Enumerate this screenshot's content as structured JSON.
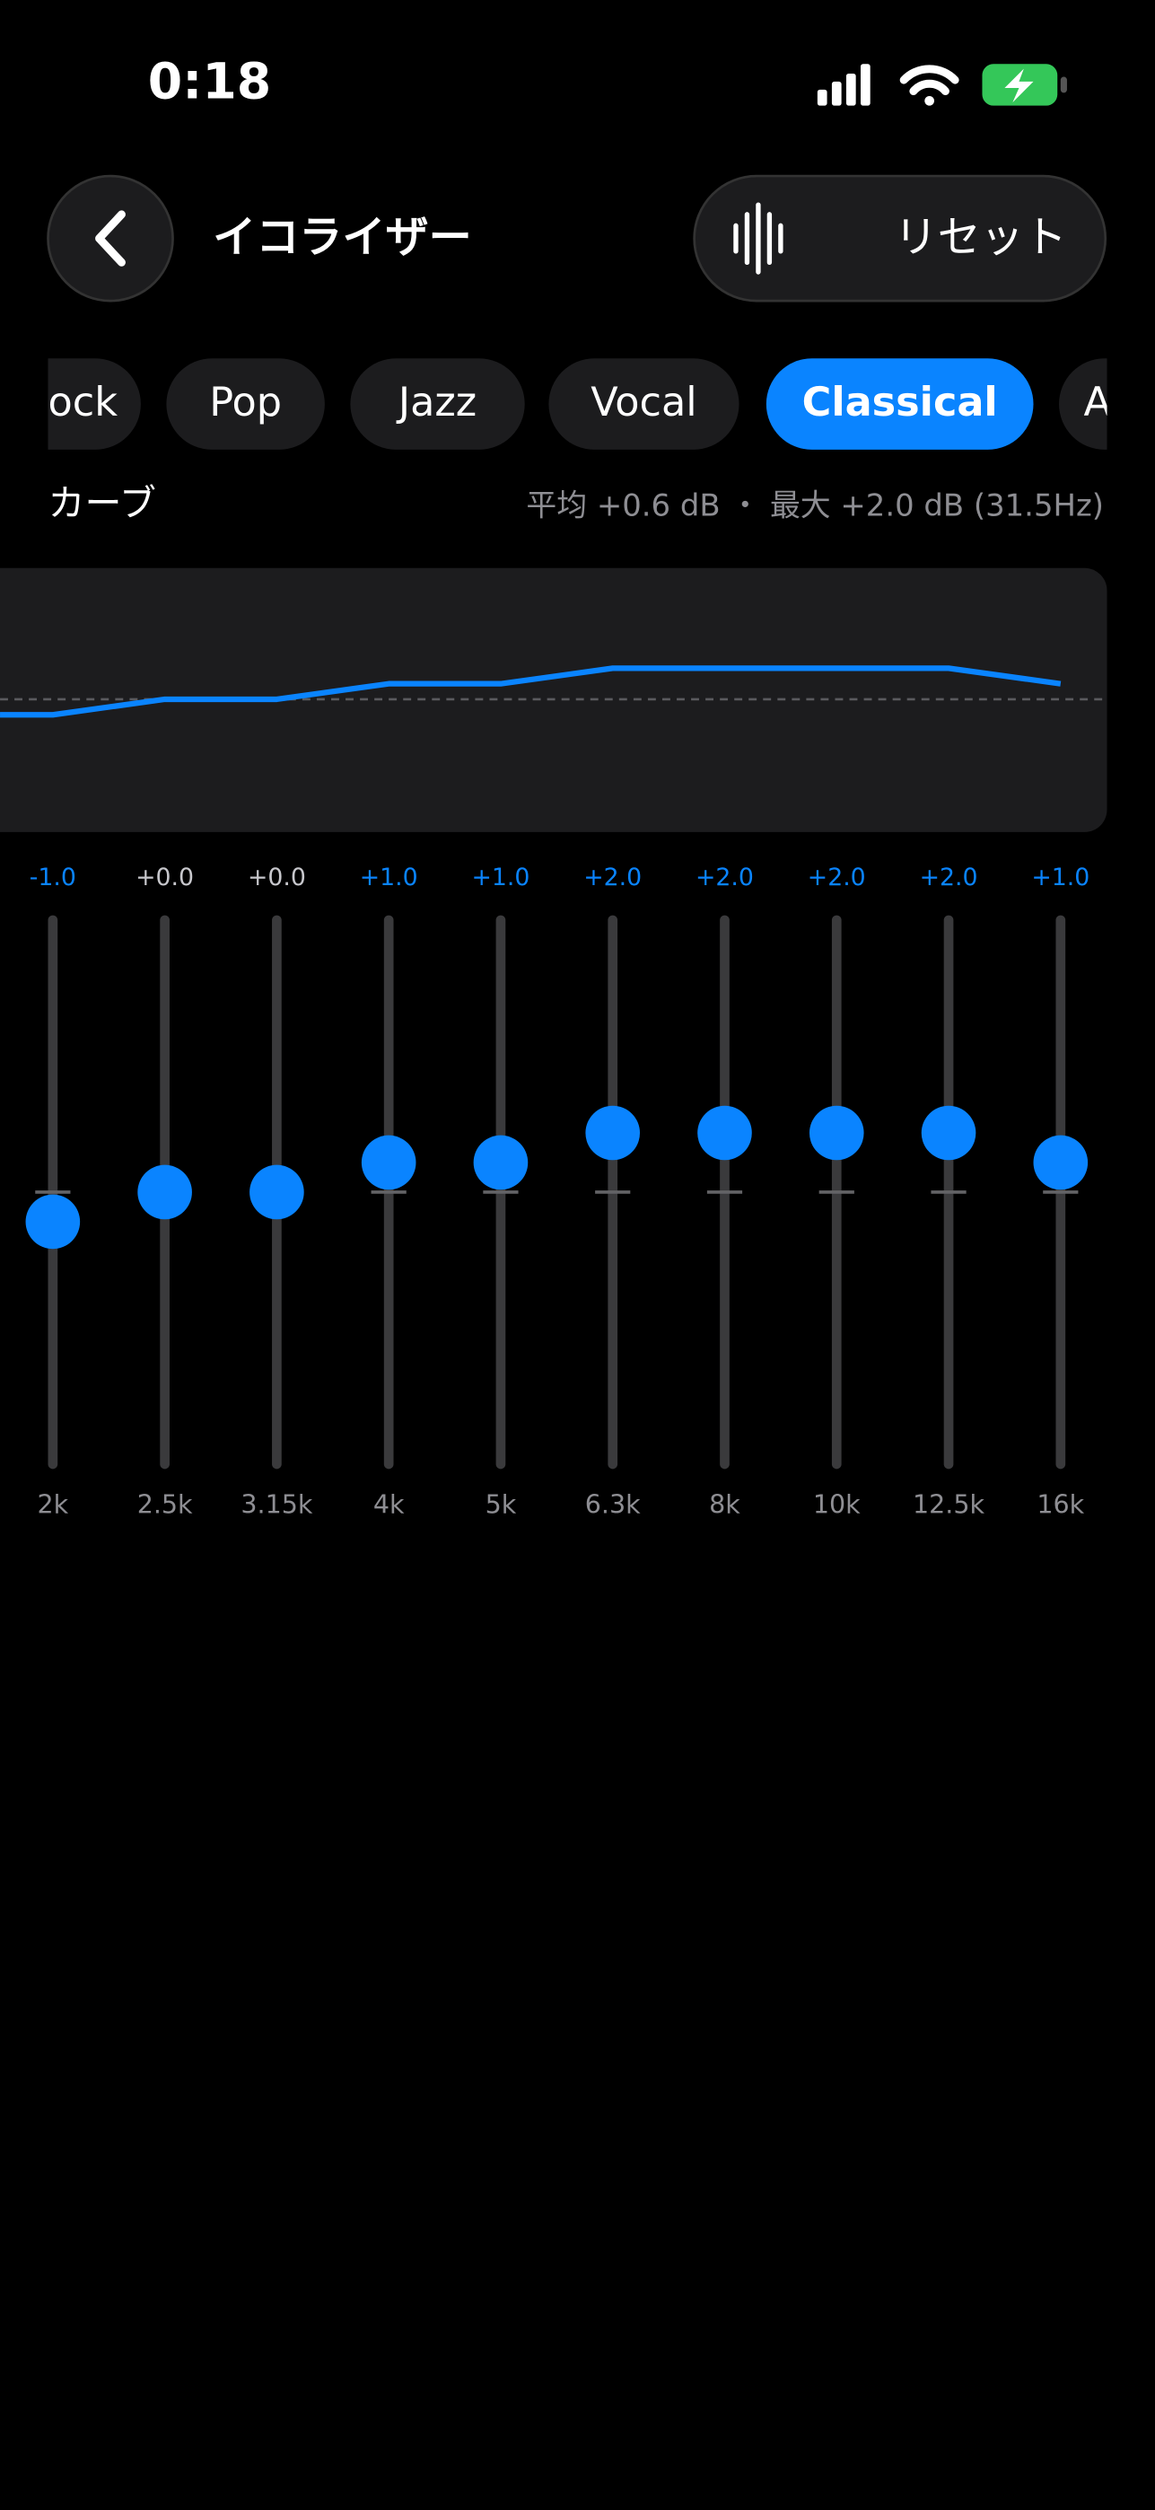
{
  "status_bar": {
    "time": "0:18"
  },
  "header": {
    "title": "イコライザー",
    "reset": "リセット"
  },
  "presets": {
    "items": [
      "ock",
      "Pop",
      "Jazz",
      "Vocal",
      "Classical",
      "A"
    ],
    "selected": 4
  },
  "curve": {
    "label": "カーブ",
    "stats": "平均 +0.6 dB ・ 最大 +2.0 dB (31.5Hz)"
  },
  "bands": [
    {
      "freq": "2k",
      "label": "-1.0",
      "value": -1
    },
    {
      "freq": "2.5k",
      "label": "+0.0",
      "value": 0
    },
    {
      "freq": "3.15k",
      "label": "+0.0",
      "value": 0
    },
    {
      "freq": "4k",
      "label": "+1.0",
      "value": 1
    },
    {
      "freq": "5k",
      "label": "+1.0",
      "value": 1
    },
    {
      "freq": "6.3k",
      "label": "+2.0",
      "value": 2
    },
    {
      "freq": "8k",
      "label": "+2.0",
      "value": 2
    },
    {
      "freq": "10k",
      "label": "+2.0",
      "value": 2
    },
    {
      "freq": "12.5k",
      "label": "+2.0",
      "value": 2
    },
    {
      "freq": "16k",
      "label": "+1.0",
      "value": 1
    }
  ]
}
